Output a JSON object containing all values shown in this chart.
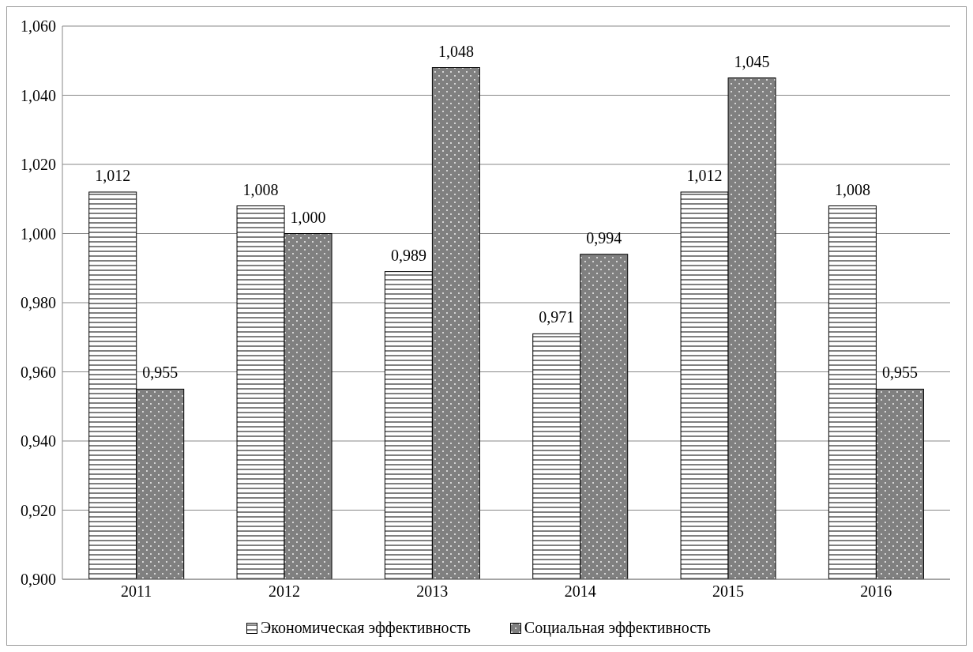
{
  "chart_data": {
    "type": "bar",
    "categories": [
      "2011",
      "2012",
      "2013",
      "2014",
      "2015",
      "2016"
    ],
    "series": [
      {
        "name": "Экономическая эффективность",
        "color": "#ffffff",
        "values": [
          1.012,
          1.008,
          0.989,
          0.971,
          1.012,
          1.008
        ],
        "value_labels": [
          "1,012",
          "1,008",
          "0,989",
          "0,971",
          "1,012",
          "1,008"
        ]
      },
      {
        "name": "Социальная эффективность",
        "color": "#808080",
        "values": [
          0.955,
          1.0,
          1.048,
          0.994,
          1.045,
          0.955
        ],
        "value_labels": [
          "0,955",
          "1,000",
          "1,048",
          "0,994",
          "1,045",
          "0,955"
        ]
      }
    ],
    "ylim": [
      0.9,
      1.06
    ],
    "yticks": [
      {
        "value": 0.9,
        "label": "0,900"
      },
      {
        "value": 0.92,
        "label": "0,920"
      },
      {
        "value": 0.94,
        "label": "0,940"
      },
      {
        "value": 0.96,
        "label": "0,960"
      },
      {
        "value": 0.98,
        "label": "0,980"
      },
      {
        "value": 1.0,
        "label": "1,000"
      },
      {
        "value": 1.02,
        "label": "1,020"
      },
      {
        "value": 1.04,
        "label": "1,040"
      },
      {
        "value": 1.06,
        "label": "1,060"
      }
    ],
    "grid": "y",
    "legend": "bottom"
  }
}
